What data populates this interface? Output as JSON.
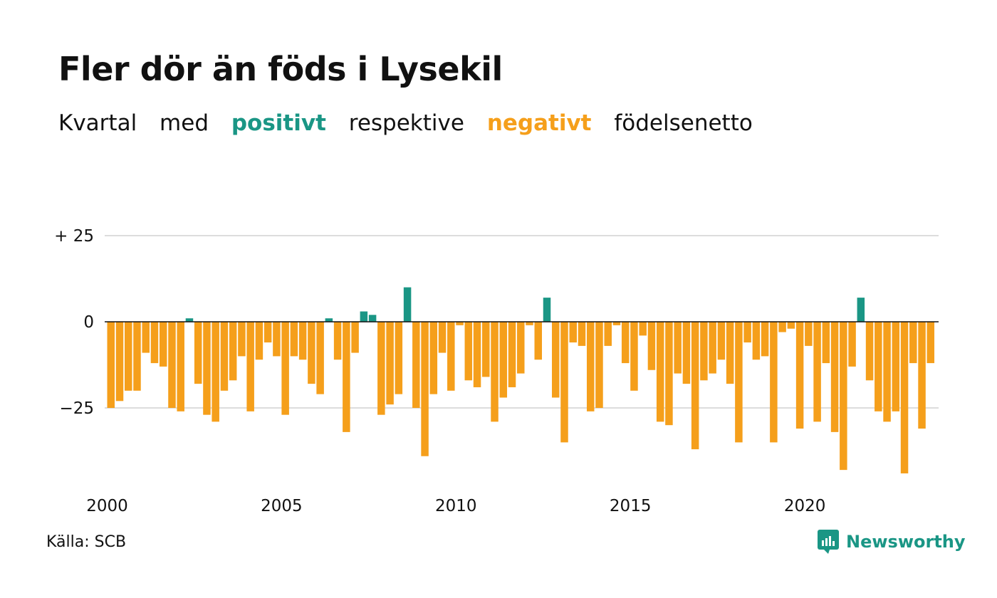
{
  "header": {
    "title": "Fler dör än föds i Lysekil",
    "subtitle_parts": [
      "Kvartal",
      "med",
      "positivt",
      "respektive",
      "negativt",
      "födelsenetto"
    ]
  },
  "footer": {
    "source": "Källa: SCB",
    "brand": "Newsworthy"
  },
  "colors": {
    "positive": "#1a9685",
    "negative": "#f59f1b",
    "grid": "#dddddd",
    "zero_line": "#111111"
  },
  "chart_data": {
    "type": "bar",
    "title": "Fler dör än föds i Lysekil",
    "subtitle": "Kvartal med positivt respektive negativt födelsenetto",
    "x_start": 2000,
    "period": "quarter",
    "x_ticks": [
      "2000",
      "2005",
      "2010",
      "2015",
      "2020"
    ],
    "y_ticks": [
      {
        "value": 25,
        "label": "+ 25"
      },
      {
        "value": 0,
        "label": "0"
      },
      {
        "value": -25,
        "label": "−25"
      }
    ],
    "ylim": [
      -45,
      30
    ],
    "grid": true,
    "values": [
      -25,
      -23,
      -20,
      -20,
      -9,
      -12,
      -13,
      -25,
      -26,
      1,
      -18,
      -27,
      -29,
      -20,
      -17,
      -10,
      -26,
      -11,
      -6,
      -10,
      -27,
      -10,
      -11,
      -18,
      -21,
      1,
      -11,
      -32,
      -9,
      3,
      2,
      -27,
      -24,
      -21,
      10,
      -25,
      -39,
      -21,
      -9,
      -20,
      -1,
      -17,
      -19,
      -16,
      -29,
      -22,
      -19,
      -15,
      -1,
      -11,
      7,
      -22,
      -35,
      -6,
      -7,
      -26,
      -25,
      -7,
      -1,
      -12,
      -20,
      -4,
      -14,
      -29,
      -30,
      -15,
      -18,
      -37,
      -17,
      -15,
      -11,
      -18,
      -35,
      -6,
      -11,
      -10,
      -35,
      -3,
      -2,
      -31,
      -7,
      -29,
      -12,
      -32,
      -43,
      -13,
      7,
      -17,
      -26,
      -29,
      -26,
      -44,
      -12,
      -31,
      -12
    ]
  }
}
